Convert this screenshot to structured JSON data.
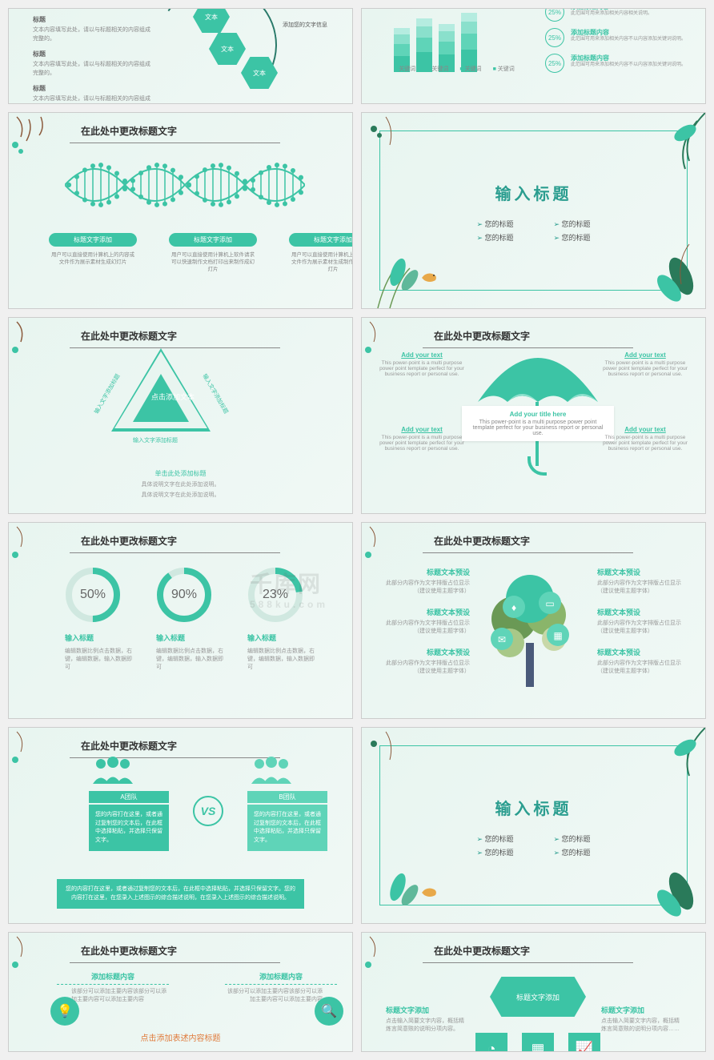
{
  "common": {
    "slide_title": "在此处中更改标题文字",
    "accent": "#3cc4a5",
    "accent_dark": "#2a9d8f",
    "bg": "#e8f5f0"
  },
  "s1": {
    "left_items": [
      {
        "h": "标题",
        "p": "文本内容填写此处，请以与标题相关的内容组成完整的。"
      },
      {
        "h": "标题",
        "p": "文本内容填写此处，请以与标题相关的内容组成完整的。"
      },
      {
        "h": "标题",
        "p": "文本内容填写此处，请以与标题相关的内容组成完整的。"
      }
    ],
    "hex_labels": [
      "文本",
      "文本",
      "文本"
    ],
    "hex_side": "添加您的文字信息"
  },
  "s2": {
    "bars": [
      {
        "segs": [
          20,
          15,
          12,
          8
        ],
        "colors": [
          "#3cc4a5",
          "#5fd4b8",
          "#8ae0cc",
          "#b5ece0"
        ]
      },
      {
        "segs": [
          25,
          18,
          14,
          10
        ],
        "colors": [
          "#3cc4a5",
          "#5fd4b8",
          "#8ae0cc",
          "#b5ece0"
        ]
      },
      {
        "segs": [
          22,
          16,
          13,
          9
        ],
        "colors": [
          "#3cc4a5",
          "#5fd4b8",
          "#8ae0cc",
          "#b5ece0"
        ]
      },
      {
        "segs": [
          28,
          20,
          15,
          11
        ],
        "colors": [
          "#3cc4a5",
          "#5fd4b8",
          "#8ae0cc",
          "#b5ece0"
        ]
      }
    ],
    "legend": [
      "关键词",
      "关键词",
      "关键词",
      "关键词"
    ],
    "items": [
      {
        "pct": "25%",
        "h": "添加标题内容",
        "p": "此范围可用来添加相关内容相关说明。"
      },
      {
        "pct": "25%",
        "h": "添加标题内容",
        "p": "此范围可用来添加相关内容不以内容添加关键词说明。"
      },
      {
        "pct": "25%",
        "h": "添加标题内容",
        "p": "此范围可用来添加相关内容不以内容添加关键词说明。"
      }
    ]
  },
  "s3": {
    "pills": [
      {
        "h": "标题文字添加",
        "p": "用户可以直接使用计算机上的内容或文件作为展示素材生成幻灯片"
      },
      {
        "h": "标题文字添加",
        "p": "用户可以直接使用计算机上软件请求可以快速制作文档打印出来制作成幻灯片"
      },
      {
        "h": "标题文字添加",
        "p": "用户可以直接使用计算机上的内容或文件作为展示素材生成制作制作成幻灯片"
      }
    ]
  },
  "s4": {
    "title": "输入标题",
    "bullets_l": [
      "您的标题",
      "您的标题"
    ],
    "bullets_r": [
      "您的标题",
      "您的标题"
    ]
  },
  "s5": {
    "center": "点击添加文本",
    "side1": "输入文字添加标题",
    "side2": "输入文字添加标题",
    "side3": "输入文字添加标题",
    "btm_h": "单击此处添加标题",
    "btm_p1": "具体说明文字在此处添加说明。",
    "btm_p2": "具体说明文字在此处添加说明。"
  },
  "s6": {
    "box_h": "Add your title here",
    "box_p": "This power-point is a multi purpose power point template perfect for your business report or personal use.",
    "corners": [
      {
        "h": "Add your text",
        "p": "This power-point is a multi purpose power point template perfect for your business report or personal use."
      },
      {
        "h": "Add your text",
        "p": "This power-point is a multi purpose power point template perfect for your business report or personal use."
      },
      {
        "h": "Add your text",
        "p": "This power-point is a multi purpose power point template perfect for your business report or personal use."
      },
      {
        "h": "Add your text",
        "p": "This power-point is a multi purpose power point template perfect for your business report or personal use."
      }
    ]
  },
  "s7": {
    "donuts": [
      {
        "pct": 50,
        "label": "50%",
        "h": "输入标题",
        "p": "编辑数据比例点击数据，右键，编辑数据，输入数据即可"
      },
      {
        "pct": 90,
        "label": "90%",
        "h": "输入标题",
        "p": "编辑数据比例点击数据，右键，编辑数据，输入数据即可"
      },
      {
        "pct": 23,
        "label": "23%",
        "h": "输入标题",
        "p": "编辑数据比例点击数据，右键，编辑数据，输入数据即可"
      }
    ],
    "wm": "千库网",
    "wm_sub": "588ku.com"
  },
  "s8": {
    "left": [
      {
        "h": "标题文本预设",
        "p": "此部分内容作为文字排版占位显示（建议使用主题字体）"
      },
      {
        "h": "标题文本预设",
        "p": "此部分内容作为文字排版占位显示（建议使用主题字体）"
      },
      {
        "h": "标题文本预设",
        "p": "此部分内容作为文字排版占位显示（建议使用主题字体）"
      }
    ],
    "right": [
      {
        "h": "标题文本预设",
        "p": "此部分内容作为文字排版占位显示（建议使用主题字体）"
      },
      {
        "h": "标题文本预设",
        "p": "此部分内容作为文字排版占位显示（建议使用主题字体）"
      },
      {
        "h": "标题文本预设",
        "p": "此部分内容作为文字排版占位显示（建议使用主题字体）"
      }
    ]
  },
  "s9": {
    "a_lbl": "A团队",
    "b_lbl": "B团队",
    "a_box": "您的内容打在这里，或者通过复制您的文本后，在此框中选择粘贴，并选择只保留文字。",
    "b_box": "您的内容打在这里，或者通过复制您的文本后，在此框中选择粘贴，并选择只保留文字。",
    "vs": "VS",
    "btm": "您的内容打在这里，或者通过复制您的文本后，在此框中选择粘贴，并选择只保留文字。您的内容打在这里，在您录入上述图示的综合描述说明，在您录入上述图示的综合描述说明。"
  },
  "s11": {
    "items": [
      {
        "h": "添加标题内容",
        "p": "该部分可以添加主要内容该部分可以添加主要内容可以添加主要内容"
      },
      {
        "h": "添加标题内容",
        "p": "该部分可以添加主要内容该部分可以添加主要内容可以添加主要内容"
      }
    ],
    "btm": "点击添加表述内容标题"
  },
  "s12": {
    "hex": "标题文字添加",
    "left": {
      "h": "标题文字添加",
      "p": "点击输入简要文字内容，概括精炼言简意赅的说明分项内容。"
    },
    "right": {
      "h": "标题文字添加",
      "p": "点击输入简要文字内容，概括精炼言简意赅的说明分项内容……"
    }
  }
}
